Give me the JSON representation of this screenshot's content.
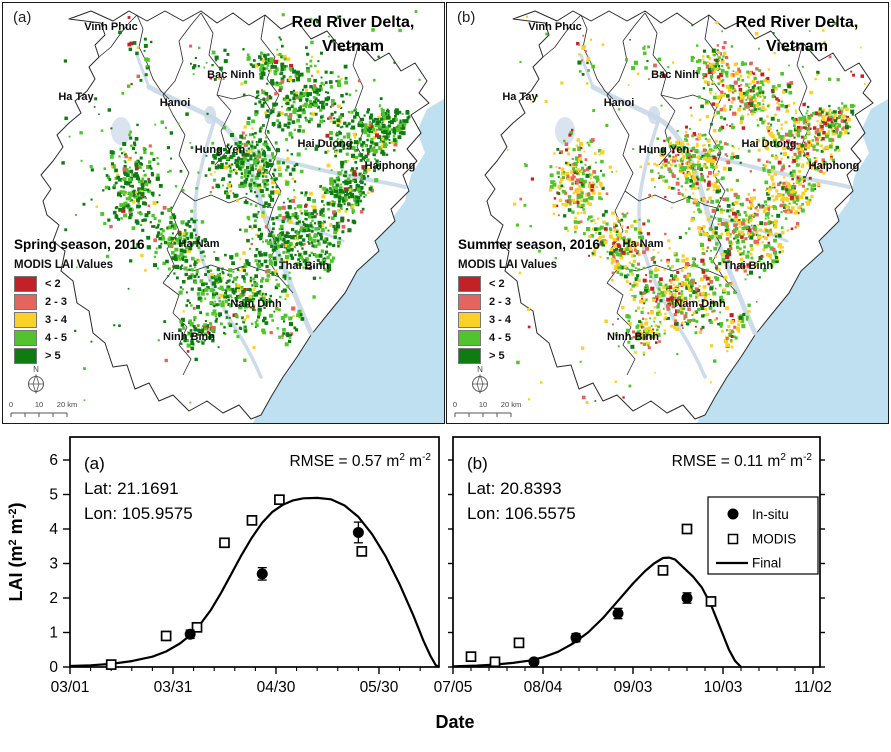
{
  "maps": {
    "title_line1": "Red River Delta,",
    "title_line2": "Vietnam",
    "legend_title": "MODIS LAI Values",
    "legend_classes": [
      {
        "label": "< 2",
        "color": "#c42127"
      },
      {
        "label": "2 - 3",
        "color": "#e4645f"
      },
      {
        "label": "3 - 4",
        "color": "#fbd127"
      },
      {
        "label": "4 - 5",
        "color": "#50c32e"
      },
      {
        "label": "> 5",
        "color": "#0f7b13"
      }
    ],
    "provinces": [
      "Vinh Phuc",
      "Bac Ninh",
      "Ha Tay",
      "Hanoi",
      "Hung Yen",
      "Hai Duong",
      "Haiphong",
      "Ha Nam",
      "Thai Binh",
      "Nam Dinh",
      "Ninh Binh"
    ],
    "compass_label": "N",
    "scale_labels": [
      "0",
      "10",
      "20 km"
    ],
    "sea_color": "#bfe0f1",
    "river_color": "#c9d8e8",
    "panels": [
      {
        "id": "a",
        "corner_label": "(a)",
        "season_label": "Spring season, 2016"
      },
      {
        "id": "b",
        "corner_label": "(b)",
        "season_label": "Summer season, 2016"
      }
    ]
  },
  "axes": {
    "x_title": "Date",
    "y_title_parts": {
      "base1": "LAI (m",
      "sup1": "2",
      "base2": " m",
      "sup2": "-2",
      "base3": ")"
    }
  },
  "chart_data": [
    {
      "type": "line_scatter",
      "panel_label": "(a)",
      "lat_label": "Lat: 21.1691",
      "lon_label": "Lon: 105.9575",
      "rmse_parts": {
        "base1": "RMSE = 0.57 m",
        "sup1": "2",
        "base2": " m",
        "sup2": "-2"
      },
      "ylim": [
        0,
        6.6
      ],
      "yticks": [
        0,
        1,
        2,
        3,
        4,
        5,
        6
      ],
      "x_major_ticks": [
        {
          "day": 0,
          "label": "03/01"
        },
        {
          "day": 30,
          "label": "03/31"
        },
        {
          "day": 60,
          "label": "04/30"
        },
        {
          "day": 90,
          "label": "05/30"
        }
      ],
      "x_axis_days": 107.5,
      "x_minor_step_days": 6,
      "series": {
        "in_situ": {
          "label": "In-situ",
          "marker": "filled-circle",
          "points": [
            {
              "date": "04/04",
              "day": 35,
              "lai": 0.95,
              "err": 0.12
            },
            {
              "date": "04/25",
              "day": 56,
              "lai": 2.7,
              "err": 0.18
            },
            {
              "date": "05/24",
              "day": 84,
              "lai": 3.9,
              "err": 0.3
            }
          ]
        },
        "modis": {
          "label": "MODIS",
          "marker": "open-square",
          "points": [
            {
              "date": "03/13",
              "day": 12,
              "lai": 0.07
            },
            {
              "date": "03/29",
              "day": 28,
              "lai": 0.9
            },
            {
              "date": "04/06",
              "day": 37,
              "lai": 1.15
            },
            {
              "date": "04/14",
              "day": 45,
              "lai": 3.6
            },
            {
              "date": "04/22",
              "day": 53,
              "lai": 4.25
            },
            {
              "date": "05/01",
              "day": 61,
              "lai": 4.85
            },
            {
              "date": "05/25",
              "day": 85,
              "lai": 3.35
            }
          ]
        },
        "final": {
          "label": "Final",
          "curve_points": [
            [
              0,
              0.03
            ],
            [
              6,
              0.05
            ],
            [
              12,
              0.09
            ],
            [
              18,
              0.17
            ],
            [
              24,
              0.3
            ],
            [
              28,
              0.45
            ],
            [
              32,
              0.68
            ],
            [
              35,
              0.92
            ],
            [
              38,
              1.25
            ],
            [
              41,
              1.65
            ],
            [
              44,
              2.15
            ],
            [
              47,
              2.7
            ],
            [
              50,
              3.25
            ],
            [
              53,
              3.75
            ],
            [
              56,
              4.18
            ],
            [
              59,
              4.5
            ],
            [
              62,
              4.7
            ],
            [
              65,
              4.83
            ],
            [
              68,
              4.89
            ],
            [
              72,
              4.9
            ],
            [
              76,
              4.86
            ],
            [
              80,
              4.68
            ],
            [
              84,
              4.35
            ],
            [
              88,
              3.85
            ],
            [
              92,
              3.2
            ],
            [
              96,
              2.4
            ],
            [
              100,
              1.5
            ],
            [
              103,
              0.75
            ],
            [
              105,
              0.32
            ],
            [
              106.5,
              0.06
            ],
            [
              107.5,
              0
            ]
          ]
        }
      }
    },
    {
      "type": "line_scatter",
      "panel_label": "(b)",
      "lat_label": "Lat: 20.8393",
      "lon_label": "Lon: 106.5575",
      "rmse_parts": {
        "base1": "RMSE = 0.11 m",
        "sup1": "2",
        "base2": " m",
        "sup2": "-2"
      },
      "ylim": [
        0,
        6.6
      ],
      "yticks": [
        0,
        1,
        2,
        3,
        4,
        5,
        6
      ],
      "x_major_ticks": [
        {
          "day": 0,
          "label": "07/05"
        },
        {
          "day": 30,
          "label": "08/04"
        },
        {
          "day": 60,
          "label": "09/03"
        },
        {
          "day": 90,
          "label": "10/03"
        },
        {
          "day": 120,
          "label": "11/02"
        }
      ],
      "x_axis_days": 122.3,
      "x_minor_step_days": 6,
      "legend": {
        "entries": [
          {
            "label": "In-situ",
            "marker": "filled-circle"
          },
          {
            "label": "MODIS",
            "marker": "open-square"
          },
          {
            "label": "Final",
            "marker": "line"
          }
        ]
      },
      "series": {
        "in_situ": {
          "label": "In-situ",
          "marker": "filled-circle",
          "points": [
            {
              "date": "08/01",
              "day": 27,
              "lai": 0.15,
              "err": 0.08
            },
            {
              "date": "08/15",
              "day": 41,
              "lai": 0.85,
              "err": 0.12
            },
            {
              "date": "08/29",
              "day": 55,
              "lai": 1.55,
              "err": 0.15
            },
            {
              "date": "09/21",
              "day": 78,
              "lai": 2.0,
              "err": 0.15
            }
          ]
        },
        "modis": {
          "label": "MODIS",
          "marker": "open-square",
          "points": [
            {
              "date": "07/11",
              "day": 6,
              "lai": 0.3
            },
            {
              "date": "07/19",
              "day": 14,
              "lai": 0.15
            },
            {
              "date": "07/27",
              "day": 22,
              "lai": 0.7
            },
            {
              "date": "09/13",
              "day": 70,
              "lai": 2.8
            },
            {
              "date": "09/21",
              "day": 78,
              "lai": 4.0
            },
            {
              "date": "09/29",
              "day": 86,
              "lai": 1.9
            }
          ]
        },
        "final": {
          "label": "Final",
          "curve_points": [
            [
              0,
              0.02
            ],
            [
              8,
              0.04
            ],
            [
              14,
              0.07
            ],
            [
              20,
              0.12
            ],
            [
              25,
              0.18
            ],
            [
              30,
              0.28
            ],
            [
              35,
              0.44
            ],
            [
              40,
              0.68
            ],
            [
              45,
              1.0
            ],
            [
              50,
              1.42
            ],
            [
              55,
              1.92
            ],
            [
              60,
              2.42
            ],
            [
              64,
              2.78
            ],
            [
              67,
              3.0
            ],
            [
              70,
              3.16
            ],
            [
              72,
              3.17
            ],
            [
              74,
              3.12
            ],
            [
              76,
              2.95
            ],
            [
              80,
              2.62
            ],
            [
              83,
              2.3
            ],
            [
              86,
              1.8
            ],
            [
              89,
              1.15
            ],
            [
              92,
              0.5
            ],
            [
              94,
              0.18
            ],
            [
              96,
              0
            ]
          ]
        }
      }
    }
  ]
}
